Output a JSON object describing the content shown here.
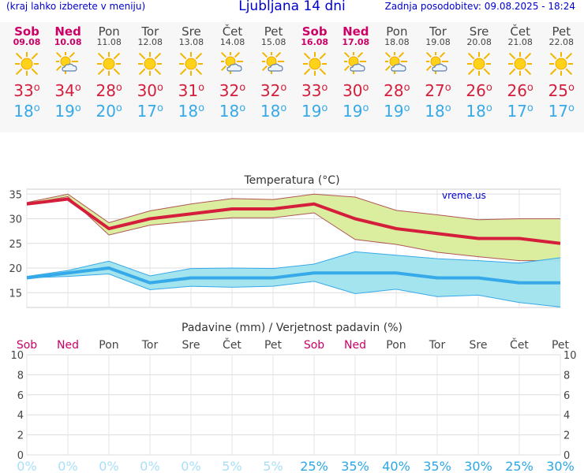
{
  "header": {
    "menu_note": "(kraj lahko izberete v meniju)",
    "title": "Ljubljana 14 dni",
    "updated": "Zadnja posodobitev: 09.08.2025 - 18:24"
  },
  "days": [
    {
      "name": "Sob",
      "date": "09.08",
      "weekend": true,
      "icon": "sun-icon",
      "max": "33",
      "min": "18"
    },
    {
      "name": "Ned",
      "date": "10.08",
      "weekend": true,
      "icon": "partly-cloudy-icon",
      "max": "34",
      "min": "19"
    },
    {
      "name": "Pon",
      "date": "11.08",
      "weekend": false,
      "icon": "sun-icon",
      "max": "28",
      "min": "20"
    },
    {
      "name": "Tor",
      "date": "12.08",
      "weekend": false,
      "icon": "sun-icon",
      "max": "30",
      "min": "17"
    },
    {
      "name": "Sre",
      "date": "13.08",
      "weekend": false,
      "icon": "sun-icon",
      "max": "31",
      "min": "18"
    },
    {
      "name": "Čet",
      "date": "14.08",
      "weekend": false,
      "icon": "partly-cloudy-icon",
      "max": "32",
      "min": "18"
    },
    {
      "name": "Pet",
      "date": "15.08",
      "weekend": false,
      "icon": "partly-cloudy-icon",
      "max": "32",
      "min": "18"
    },
    {
      "name": "Sob",
      "date": "16.08",
      "weekend": true,
      "icon": "sun-icon",
      "max": "33",
      "min": "19"
    },
    {
      "name": "Ned",
      "date": "17.08",
      "weekend": true,
      "icon": "partly-cloudy-icon",
      "max": "30",
      "min": "19"
    },
    {
      "name": "Pon",
      "date": "18.08",
      "weekend": false,
      "icon": "partly-cloudy-icon",
      "max": "28",
      "min": "19"
    },
    {
      "name": "Tor",
      "date": "19.08",
      "weekend": false,
      "icon": "partly-cloudy-icon",
      "max": "27",
      "min": "18"
    },
    {
      "name": "Sre",
      "date": "20.08",
      "weekend": false,
      "icon": "sun-icon",
      "max": "26",
      "min": "18"
    },
    {
      "name": "Čet",
      "date": "21.08",
      "weekend": false,
      "icon": "sun-icon",
      "max": "26",
      "min": "17"
    },
    {
      "name": "Pet",
      "date": "22.08",
      "weekend": false,
      "icon": "sun-icon",
      "max": "25",
      "min": "17"
    }
  ],
  "colors": {
    "weekend": "#cc0066",
    "max_line": "#d41e3c",
    "max_band": "#d9ec9a",
    "min_line": "#36a9e8",
    "min_band": "#9fe3ee",
    "prob_light": "#a8def7",
    "prob_strong": "#2aa8e6"
  },
  "chart_data": [
    {
      "type": "line",
      "title": "Temperatura (°C)",
      "watermark": "vreme.us",
      "categories": [
        "Sob",
        "Ned",
        "Pon",
        "Tor",
        "Sre",
        "Čet",
        "Pet",
        "Sob",
        "Ned",
        "Pon",
        "Tor",
        "Sre",
        "Čet",
        "Pet"
      ],
      "ylim": [
        12,
        36
      ],
      "yticks": [
        15,
        20,
        25,
        30,
        35
      ],
      "grid": true,
      "series": [
        {
          "values": [
            33,
            34,
            28,
            30,
            31,
            32,
            32,
            33,
            30,
            28,
            27,
            26,
            26,
            25
          ],
          "band_low": [
            33,
            34.5,
            26.7,
            28.7,
            29.5,
            30.2,
            30.2,
            31.2,
            25.8,
            24.8,
            23.2,
            22.3,
            21.5,
            21.5
          ],
          "band_high": [
            33.3,
            35,
            29.2,
            31.6,
            33.0,
            34.1,
            33.9,
            35,
            34.4,
            31.7,
            30.8,
            29.8,
            30.0,
            30.0
          ]
        },
        {
          "values": [
            18,
            19,
            20,
            17,
            18,
            18,
            18,
            19,
            19,
            19,
            18,
            18,
            17,
            17
          ],
          "band_low": [
            18,
            18.3,
            18.8,
            15.6,
            16.3,
            16.1,
            16.3,
            17.3,
            14.8,
            15.7,
            14.2,
            14.5,
            13.0,
            12.1
          ],
          "band_high": [
            18.3,
            19.5,
            21.4,
            18.4,
            19.9,
            20.0,
            19.9,
            20.8,
            23.3,
            22.6,
            21.9,
            21.5,
            21.0,
            22.1
          ]
        }
      ]
    },
    {
      "type": "bar",
      "title": "Padavine (mm) / Verjetnost padavin (%)",
      "categories": [
        "Sob",
        "Ned",
        "Pon",
        "Tor",
        "Sre",
        "Čet",
        "Pet",
        "Sob",
        "Ned",
        "Pon",
        "Tor",
        "Sre",
        "Čet",
        "Pet"
      ],
      "ylim": [
        0,
        10
      ],
      "yticks": [
        0,
        2,
        4,
        6,
        8,
        10
      ],
      "grid": true,
      "values": [
        0,
        0,
        0,
        0,
        0,
        0,
        0,
        0,
        0,
        0,
        0,
        0,
        0,
        0
      ],
      "probability": [
        "0%",
        "0%",
        "0%",
        "0%",
        "0%",
        "5%",
        "5%",
        "25%",
        "35%",
        "40%",
        "35%",
        "30%",
        "25%",
        "30%"
      ]
    }
  ]
}
